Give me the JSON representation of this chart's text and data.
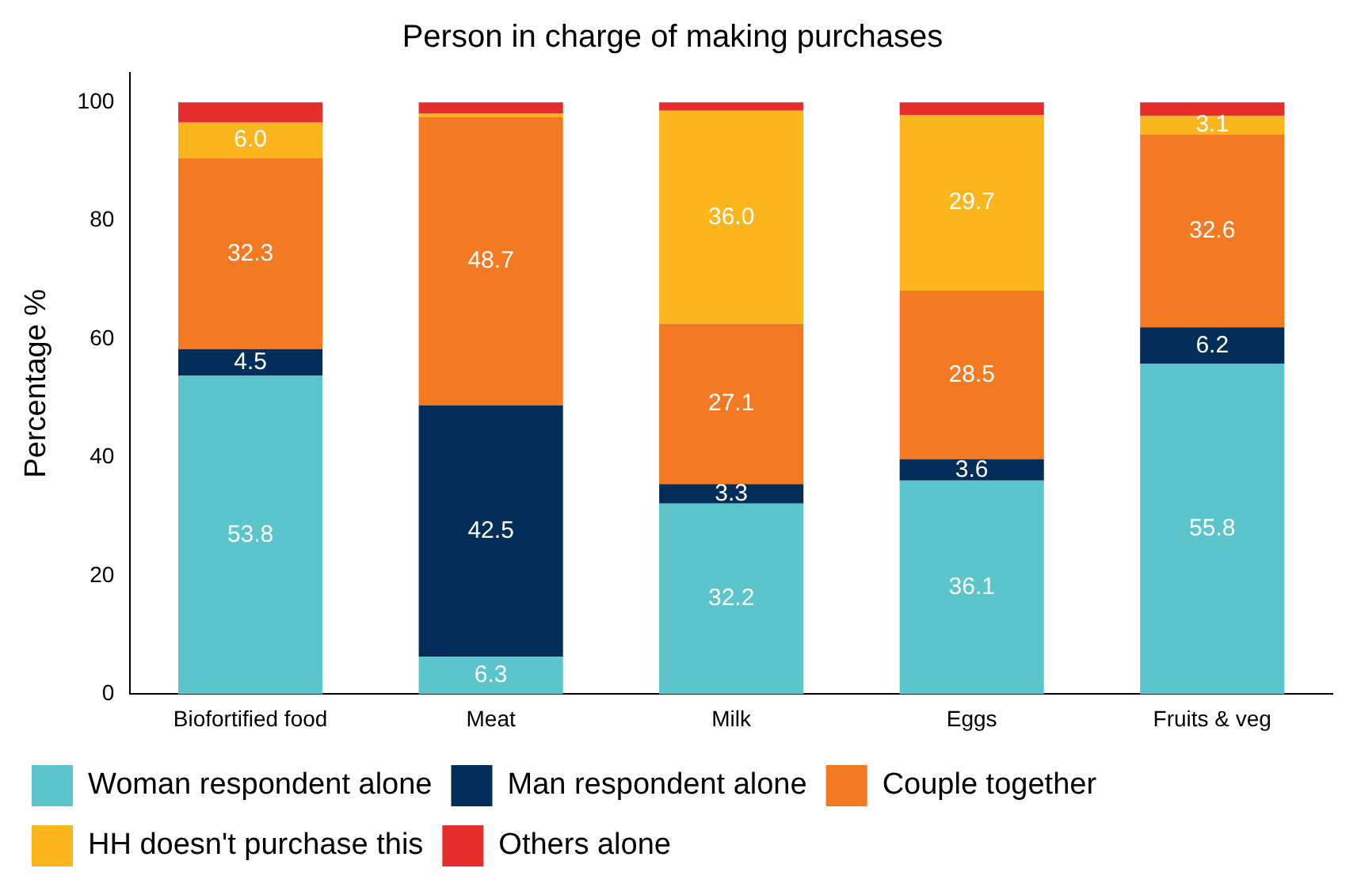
{
  "chart_data": {
    "type": "bar",
    "title": "Person in charge of making purchases",
    "ylabel": "Percentage %",
    "categories": [
      "Biofortified food",
      "Meat",
      "Milk",
      "Eggs",
      "Fruits & veg"
    ],
    "stacked": true,
    "ylim": [
      0,
      105
    ],
    "yticks": [
      0,
      20,
      40,
      60,
      80,
      100
    ],
    "grid": false,
    "legend": "bottom",
    "series": [
      {
        "name": "Woman respondent alone",
        "color": "#5bc5cb",
        "values": [
          53.8,
          6.3,
          32.2,
          36.1,
          55.8
        ],
        "value_labels": [
          "53.8",
          "6.3",
          "32.2",
          "36.1",
          "55.8"
        ]
      },
      {
        "name": "Man respondent alone",
        "color": "#052d5a",
        "values": [
          4.5,
          42.5,
          3.3,
          3.6,
          6.2
        ],
        "value_labels": [
          "4.5",
          "42.5",
          "3.3",
          "3.6",
          "6.2"
        ]
      },
      {
        "name": "Couple together",
        "color": "#f37a23",
        "values": [
          32.3,
          48.7,
          27.1,
          28.5,
          32.6
        ],
        "value_labels": [
          "32.3",
          "48.7",
          "27.1",
          "28.5",
          "32.6"
        ]
      },
      {
        "name": "HH doesn't purchase this",
        "color": "#fbb61e",
        "values": [
          6.0,
          0.6,
          36.0,
          29.7,
          3.1
        ],
        "value_labels": [
          "6.0",
          null,
          "36.0",
          "29.7",
          "3.1"
        ]
      },
      {
        "name": "Others alone",
        "color": "#e52d2d",
        "values": [
          3.4,
          1.9,
          1.4,
          2.1,
          2.3
        ],
        "value_labels": [
          null,
          null,
          null,
          null,
          null
        ]
      }
    ]
  }
}
